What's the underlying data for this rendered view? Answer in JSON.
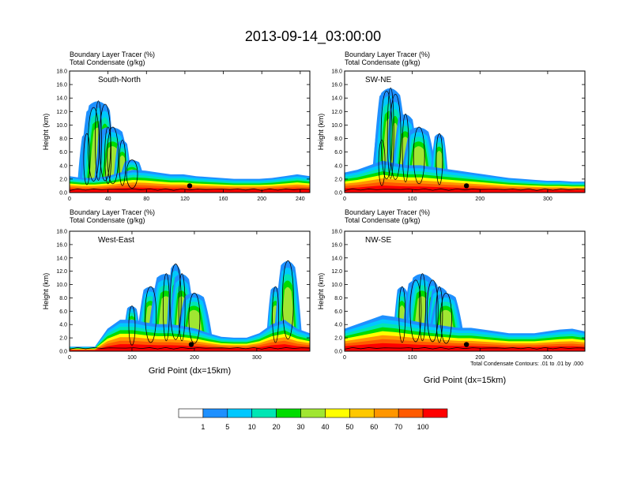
{
  "figure": {
    "title": "2013-09-14_03:00:00",
    "panel_header_line1": "Boundary Layer Tracer    (%)",
    "panel_header_line2": "Total Condensate    (g/kg)",
    "contour_note": "Total Condensate Contours: .01 to .01 by .000"
  },
  "chart_data": [
    {
      "type": "heatmap",
      "panel": "South-North",
      "title": "Boundary Layer Tracer (%) / Total Condensate (g/kg)",
      "ylabel": "Height (km)",
      "xlabel": "",
      "xlim": [
        0,
        250
      ],
      "ylim": [
        0,
        18
      ],
      "x_ticks": [
        "0",
        "40",
        "80",
        "120",
        "160",
        "200",
        "240"
      ],
      "y_ticks": [
        "0.0",
        "2.0",
        "4.0",
        "6.0",
        "8.0",
        "10.0",
        "12.0",
        "14.0",
        "16.0",
        "18.0"
      ],
      "marker_x": 125,
      "cloud_x": [
        18,
        25,
        30,
        37,
        40,
        45,
        55,
        65
      ],
      "cloud_top": [
        9,
        13,
        14,
        13.5,
        10,
        10,
        8,
        5
      ],
      "bl_depth": [
        1.8,
        1.6,
        1.6,
        1.8,
        2.2,
        2.5,
        2.4,
        2.2,
        2.0,
        2.0,
        1.8,
        1.7,
        1.6,
        1.5,
        1.5,
        1.5,
        1.6,
        1.8,
        2.0,
        1.8
      ]
    },
    {
      "type": "heatmap",
      "panel": "SW-NE",
      "title": "Boundary Layer Tracer (%) / Total Condensate (g/kg)",
      "ylabel": "Height (km)",
      "xlabel": "",
      "xlim": [
        0,
        355
      ],
      "ylim": [
        0,
        18
      ],
      "x_ticks": [
        "0",
        "100",
        "200",
        "300"
      ],
      "y_ticks": [
        "0.0",
        "2.0",
        "4.0",
        "6.0",
        "8.0",
        "10.0",
        "12.0",
        "14.0",
        "16.0",
        "18.0"
      ],
      "marker_x": 180,
      "cloud_x": [
        55,
        62,
        68,
        75,
        90,
        110,
        140
      ],
      "cloud_top": [
        8,
        15.5,
        16,
        15,
        12,
        10,
        9
      ],
      "bl_depth": [
        2.2,
        2.5,
        3.0,
        3.5,
        3.2,
        3.0,
        3.0,
        2.8,
        2.6,
        2.4,
        2.2,
        2.0,
        1.8,
        1.6,
        1.5,
        1.4,
        1.3,
        1.3,
        1.2,
        1.2
      ]
    },
    {
      "type": "heatmap",
      "panel": "West-East",
      "title": "Boundary Layer Tracer (%) / Total Condensate (g/kg)",
      "ylabel": "Height (km)",
      "xlabel": "Grid Point (dx=15km)",
      "xlim": [
        0,
        385
      ],
      "ylim": [
        0,
        18
      ],
      "x_ticks": [
        "0",
        "100",
        "200",
        "300"
      ],
      "y_ticks": [
        "0.0",
        "2.0",
        "4.0",
        "6.0",
        "8.0",
        "10.0",
        "12.0",
        "14.0",
        "16.0",
        "18.0"
      ],
      "marker_x": 195,
      "cloud_x": [
        100,
        130,
        155,
        170,
        180,
        200,
        330,
        350
      ],
      "cloud_top": [
        7,
        10,
        12,
        13.5,
        12,
        9,
        10,
        14
      ],
      "bl_depth": [
        0.5,
        0.5,
        0.5,
        2.5,
        3.5,
        3.5,
        3.2,
        3.0,
        3.0,
        2.8,
        2.5,
        2.0,
        1.6,
        1.5,
        1.5,
        2.0,
        3.0,
        3.5,
        2.5,
        2.0
      ]
    },
    {
      "type": "heatmap",
      "panel": "NW-SE",
      "title": "Boundary Layer Tracer (%) / Total Condensate (g/kg)",
      "ylabel": "Height (km)",
      "xlabel": "Grid Point (dx=15km)",
      "xlim": [
        0,
        355
      ],
      "ylim": [
        0,
        18
      ],
      "x_ticks": [
        "0",
        "100",
        "200",
        "300"
      ],
      "y_ticks": [
        "0.0",
        "2.0",
        "4.0",
        "6.0",
        "8.0",
        "10.0",
        "12.0",
        "14.0",
        "16.0",
        "18.0"
      ],
      "marker_x": 180,
      "cloud_x": [
        85,
        105,
        115,
        130,
        140,
        150
      ],
      "cloud_top": [
        10,
        11,
        12,
        11,
        10,
        9
      ],
      "bl_depth": [
        2.5,
        3.0,
        3.5,
        4.0,
        3.8,
        3.5,
        3.2,
        3.0,
        2.8,
        2.6,
        2.6,
        2.4,
        2.2,
        2.0,
        2.0,
        2.0,
        2.2,
        2.4,
        2.5,
        2.2
      ]
    }
  ],
  "colorbar": {
    "labels": [
      "1",
      "5",
      "10",
      "20",
      "30",
      "40",
      "50",
      "60",
      "70",
      "100"
    ],
    "colors": [
      "#ffffff",
      "#1e90ff",
      "#00c8ff",
      "#00e6b4",
      "#00dc00",
      "#a0e632",
      "#ffff00",
      "#ffc800",
      "#ff9600",
      "#ff5a00",
      "#ff0000"
    ]
  }
}
